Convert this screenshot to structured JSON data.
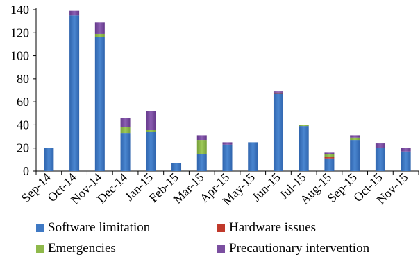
{
  "chart_data": {
    "type": "bar",
    "stacked": true,
    "categories": [
      "Sep-14",
      "Oct-14",
      "Nov-14",
      "Dec-14",
      "Jan-15",
      "Feb-15",
      "Mar-15",
      "Apr-15",
      "May-15",
      "Jun-15",
      "Jul-15",
      "Aug-15",
      "Sep-15",
      "Oct-15",
      "Nov-15"
    ],
    "series": [
      {
        "name": "Software limitation",
        "color": "#3f79c4",
        "values": [
          20,
          135,
          116,
          33,
          34,
          7,
          15,
          23,
          25,
          67,
          39,
          11,
          27,
          20,
          17
        ]
      },
      {
        "name": "Hardware issues",
        "color": "#c0392b",
        "values": [
          0,
          0,
          0,
          0,
          0,
          0,
          0,
          0,
          0,
          1,
          0,
          1,
          0,
          0,
          0
        ]
      },
      {
        "name": "Emergencies",
        "color": "#8fb94b",
        "values": [
          0,
          0,
          3,
          5,
          2,
          0,
          12,
          0,
          0,
          0,
          1,
          3,
          2,
          0,
          0
        ]
      },
      {
        "name": "Precautionary intervention",
        "color": "#7b4fa0",
        "values": [
          0,
          4,
          10,
          8,
          16,
          0,
          4,
          2,
          0,
          1,
          0,
          1,
          2,
          4,
          3
        ]
      }
    ],
    "ylim": [
      0,
      140
    ],
    "yticks": [
      0,
      20,
      40,
      60,
      80,
      100,
      120,
      140
    ],
    "ytick_labels": [
      "0",
      "20",
      "40",
      "60",
      "80",
      "100",
      "120",
      "140"
    ],
    "grid": false,
    "legend_position": "bottom",
    "title": "",
    "xlabel": "",
    "ylabel": ""
  },
  "legend": {
    "items": [
      {
        "label": "Software limitation",
        "color": "#3f79c4"
      },
      {
        "label": "Hardware issues",
        "color": "#c0392b"
      },
      {
        "label": "Emergencies",
        "color": "#8fb94b"
      },
      {
        "label": "Precautionary intervention",
        "color": "#7b4fa0"
      }
    ]
  }
}
